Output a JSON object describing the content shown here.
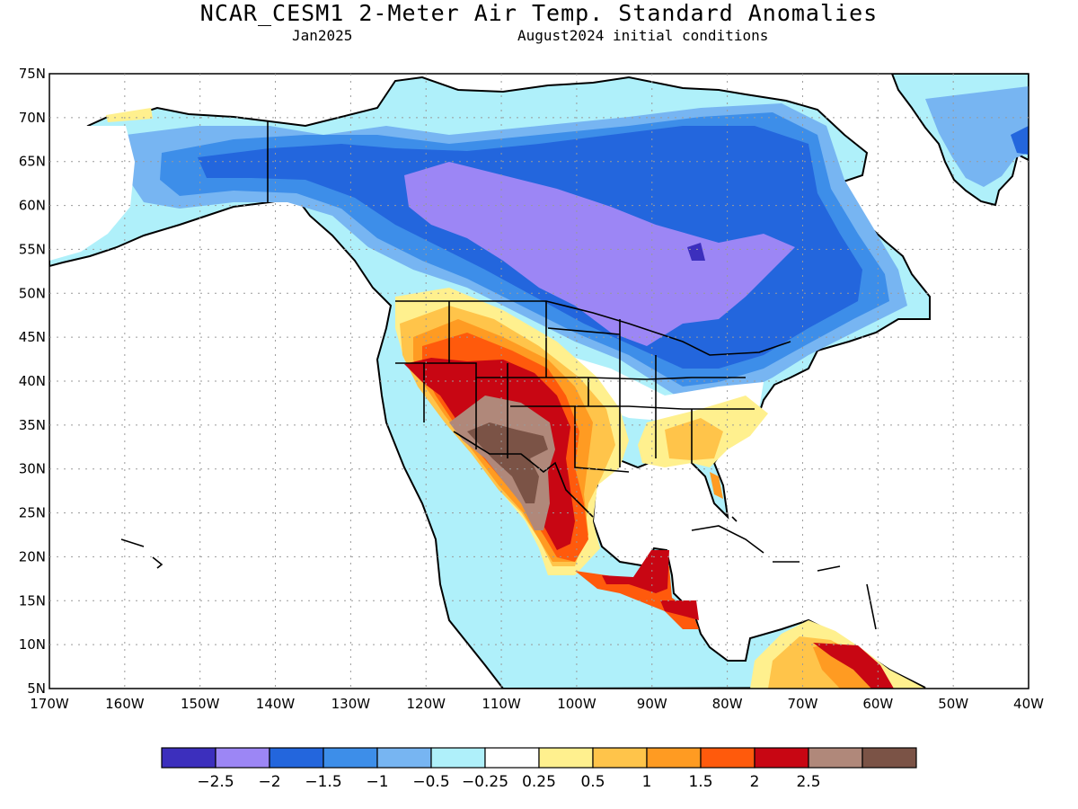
{
  "header": {
    "title": "NCAR_CESM1 2-Meter Air Temp. Standard Anomalies",
    "month": "Jan2025",
    "init": "August2024 initial conditions"
  },
  "map": {
    "lat_labels": [
      "75N",
      "70N",
      "65N",
      "60N",
      "55N",
      "50N",
      "45N",
      "40N",
      "35N",
      "30N",
      "25N",
      "20N",
      "15N",
      "10N",
      "5N"
    ],
    "lon_labels": [
      "170W",
      "160W",
      "150W",
      "140W",
      "130W",
      "120W",
      "110W",
      "100W",
      "90W",
      "80W",
      "70W",
      "60W",
      "50W",
      "40W"
    ]
  },
  "colorbar": {
    "colors": [
      "#3c2fbd",
      "#9c86f5",
      "#2366dd",
      "#3d8ee9",
      "#77b5f2",
      "#aff0fa",
      "#ffffff",
      "#fff08e",
      "#ffc44a",
      "#ff9b22",
      "#ff5a0c",
      "#c80613",
      "#b0887a",
      "#7b5346"
    ],
    "labels": [
      "-2.5",
      "-2",
      "-1.5",
      "-1",
      "-0.5",
      "-0.25",
      "0.25",
      "0.5",
      "1",
      "1.5",
      "2",
      "2.5"
    ]
  }
}
